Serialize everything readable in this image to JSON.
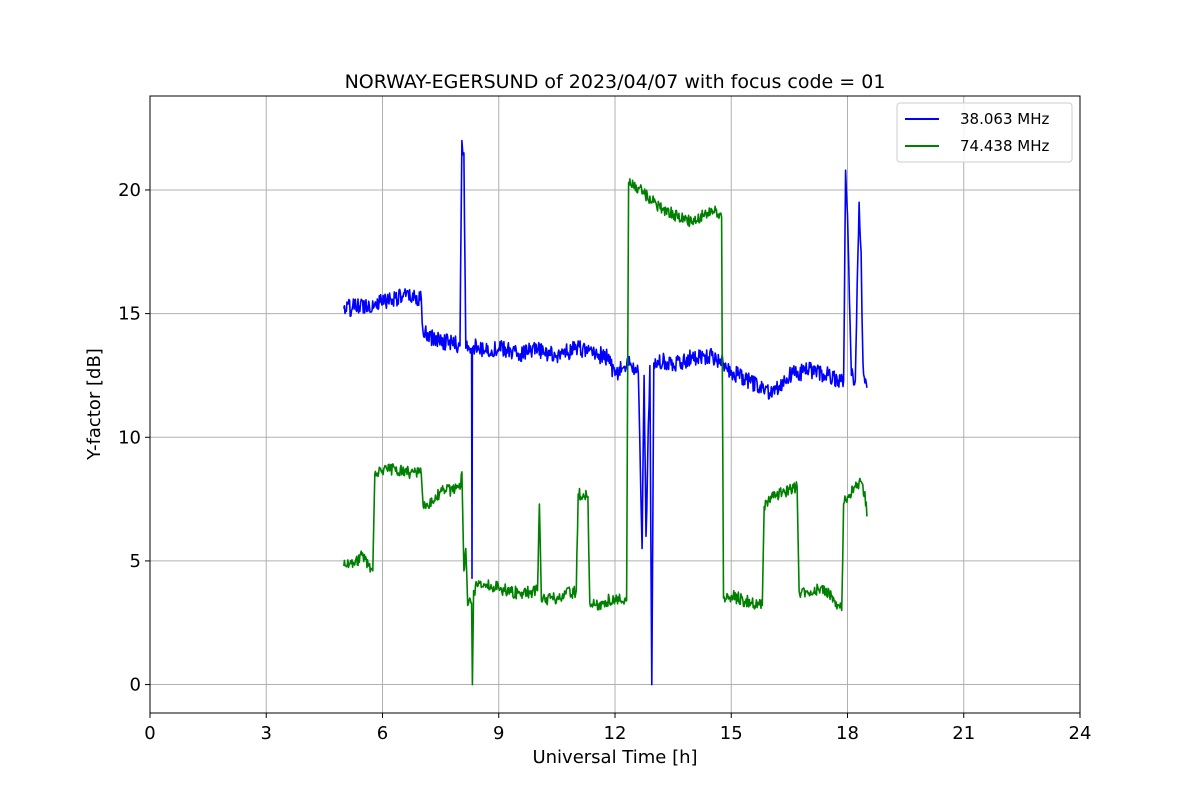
{
  "chart_data": {
    "type": "line",
    "title": "NORWAY-EGERSUND of 2023/04/07 with focus code = 01",
    "xlabel": "Universal Time [h]",
    "ylabel": "Y-factor [dB]",
    "xlim": [
      0,
      24
    ],
    "ylim": [
      -1.15,
      23.8
    ],
    "xticks": [
      0,
      3,
      6,
      9,
      12,
      15,
      18,
      21,
      24
    ],
    "yticks": [
      0,
      5,
      10,
      15,
      20
    ],
    "grid": true,
    "legend_position": "top-right",
    "series": [
      {
        "name": "38.063 MHz",
        "color": "#0000ff",
        "noise": 0.35,
        "x": [
          5.0,
          5.4,
          5.8,
          6.2,
          6.6,
          7.0,
          7.05,
          7.3,
          7.8,
          8.0,
          8.05,
          8.1,
          8.15,
          8.2,
          8.25,
          8.3,
          8.31,
          8.32,
          8.35,
          8.5,
          9.0,
          9.5,
          10.0,
          10.5,
          11.0,
          11.5,
          11.8,
          12.0,
          12.2,
          12.4,
          12.6,
          12.7,
          12.75,
          12.8,
          12.9,
          12.95,
          13.0,
          13.1,
          13.5,
          14.0,
          14.5,
          14.8,
          15.0,
          15.5,
          15.8,
          16.0,
          16.5,
          17.0,
          17.5,
          17.9,
          17.95,
          18.0,
          18.1,
          18.2,
          18.3,
          18.35,
          18.4,
          18.45,
          18.5
        ],
        "values": [
          15.2,
          15.3,
          15.4,
          15.6,
          15.7,
          15.6,
          14.2,
          14.0,
          13.8,
          13.7,
          22.0,
          21.5,
          13.6,
          13.5,
          13.6,
          13.5,
          4.3,
          13.6,
          13.7,
          13.5,
          13.6,
          13.4,
          13.5,
          13.3,
          13.6,
          13.4,
          13.2,
          12.5,
          12.8,
          13.0,
          12.6,
          5.5,
          12.5,
          6.0,
          12.9,
          0.0,
          13.0,
          13.1,
          13.0,
          13.2,
          13.3,
          13.0,
          12.7,
          12.2,
          12.0,
          11.8,
          12.5,
          12.7,
          12.5,
          12.3,
          20.8,
          19.0,
          12.5,
          12.3,
          19.5,
          17.5,
          13.0,
          12.2,
          12.0
        ]
      },
      {
        "name": "74.438 MHz",
        "color": "#008000",
        "noise": 0.25,
        "x": [
          5.0,
          5.3,
          5.5,
          5.7,
          5.75,
          5.8,
          6.2,
          6.6,
          7.0,
          7.05,
          7.3,
          7.5,
          8.0,
          8.05,
          8.1,
          8.15,
          8.2,
          8.3,
          8.32,
          8.35,
          8.5,
          9.0,
          9.5,
          10.0,
          10.05,
          10.1,
          10.5,
          11.0,
          11.05,
          11.3,
          11.35,
          11.5,
          12.0,
          12.3,
          12.35,
          12.4,
          12.6,
          13.0,
          13.5,
          14.0,
          14.5,
          14.75,
          14.8,
          15.0,
          15.5,
          15.8,
          15.85,
          15.9,
          16.5,
          16.7,
          16.75,
          16.8,
          17.3,
          17.6,
          17.8,
          17.85,
          17.9,
          18.0,
          18.3,
          18.45,
          18.5
        ],
        "values": [
          4.8,
          5.0,
          5.2,
          4.7,
          4.6,
          8.5,
          8.7,
          8.6,
          8.5,
          7.2,
          7.4,
          7.8,
          7.9,
          8.6,
          4.6,
          5.5,
          3.2,
          3.3,
          0.0,
          3.8,
          4.1,
          3.9,
          3.7,
          3.8,
          7.3,
          3.4,
          3.5,
          3.8,
          7.7,
          7.6,
          3.3,
          3.2,
          3.5,
          3.4,
          20.3,
          20.2,
          20.1,
          19.5,
          19.0,
          18.7,
          19.2,
          18.9,
          3.5,
          3.6,
          3.3,
          3.2,
          7.2,
          7.4,
          7.9,
          8.0,
          3.8,
          3.7,
          3.9,
          3.6,
          3.1,
          3.0,
          7.3,
          7.6,
          8.2,
          7.8,
          6.8
        ]
      }
    ]
  }
}
